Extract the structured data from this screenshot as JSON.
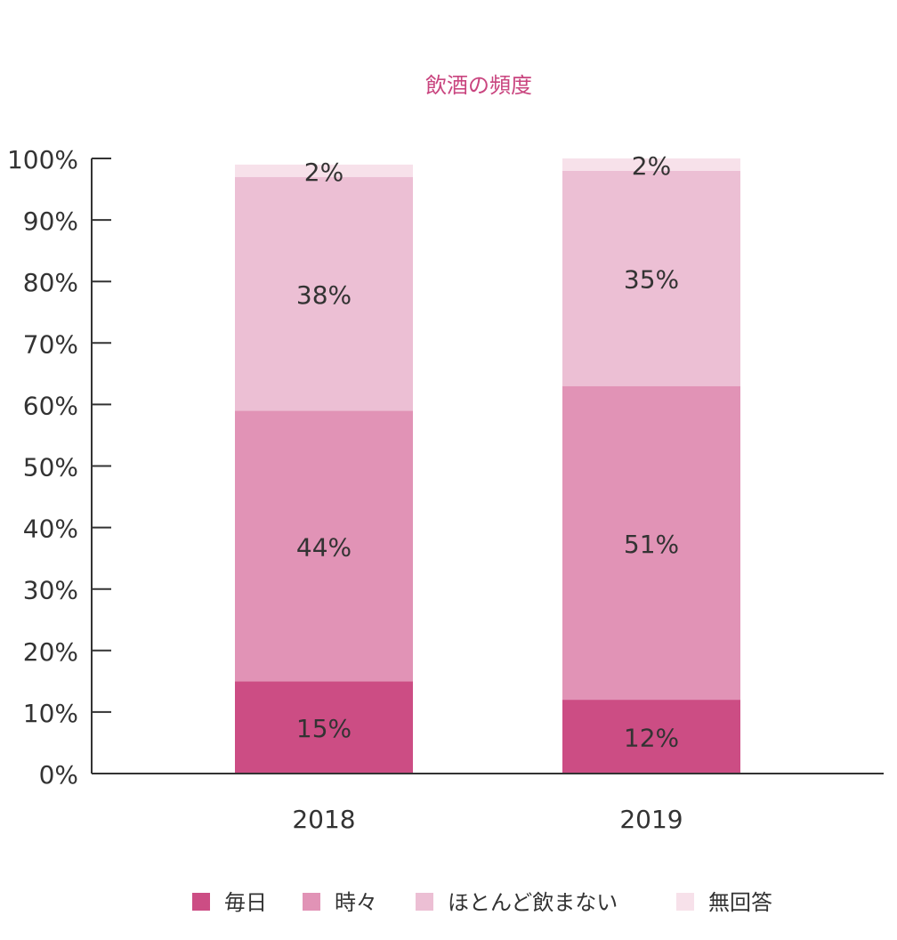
{
  "chart_data": {
    "type": "bar",
    "stacked": true,
    "title": "飲酒の頻度",
    "categories": [
      "2018",
      "2019"
    ],
    "series": [
      {
        "name": "毎日",
        "values": [
          15,
          12
        ],
        "labels": [
          "15%",
          "12%"
        ],
        "color": "#cc4d84"
      },
      {
        "name": "時々",
        "values": [
          44,
          51
        ],
        "labels": [
          "44%",
          "51%"
        ],
        "color": "#e193b6"
      },
      {
        "name": "ほとんど飲まない",
        "values": [
          38,
          35
        ],
        "labels": [
          "38%",
          "35%"
        ],
        "color": "#ecbfd4"
      },
      {
        "name": "無回答",
        "values": [
          2,
          2
        ],
        "labels": [
          "2%",
          "2%"
        ],
        "color": "#f7e1ea"
      }
    ],
    "yticks": [
      "0%",
      "10%",
      "20%",
      "30%",
      "40%",
      "50%",
      "60%",
      "70%",
      "80%",
      "90%",
      "100%"
    ],
    "ylim": [
      0,
      100
    ],
    "xlabel": "",
    "ylabel": "",
    "grid": false,
    "legend_position": "bottom"
  }
}
